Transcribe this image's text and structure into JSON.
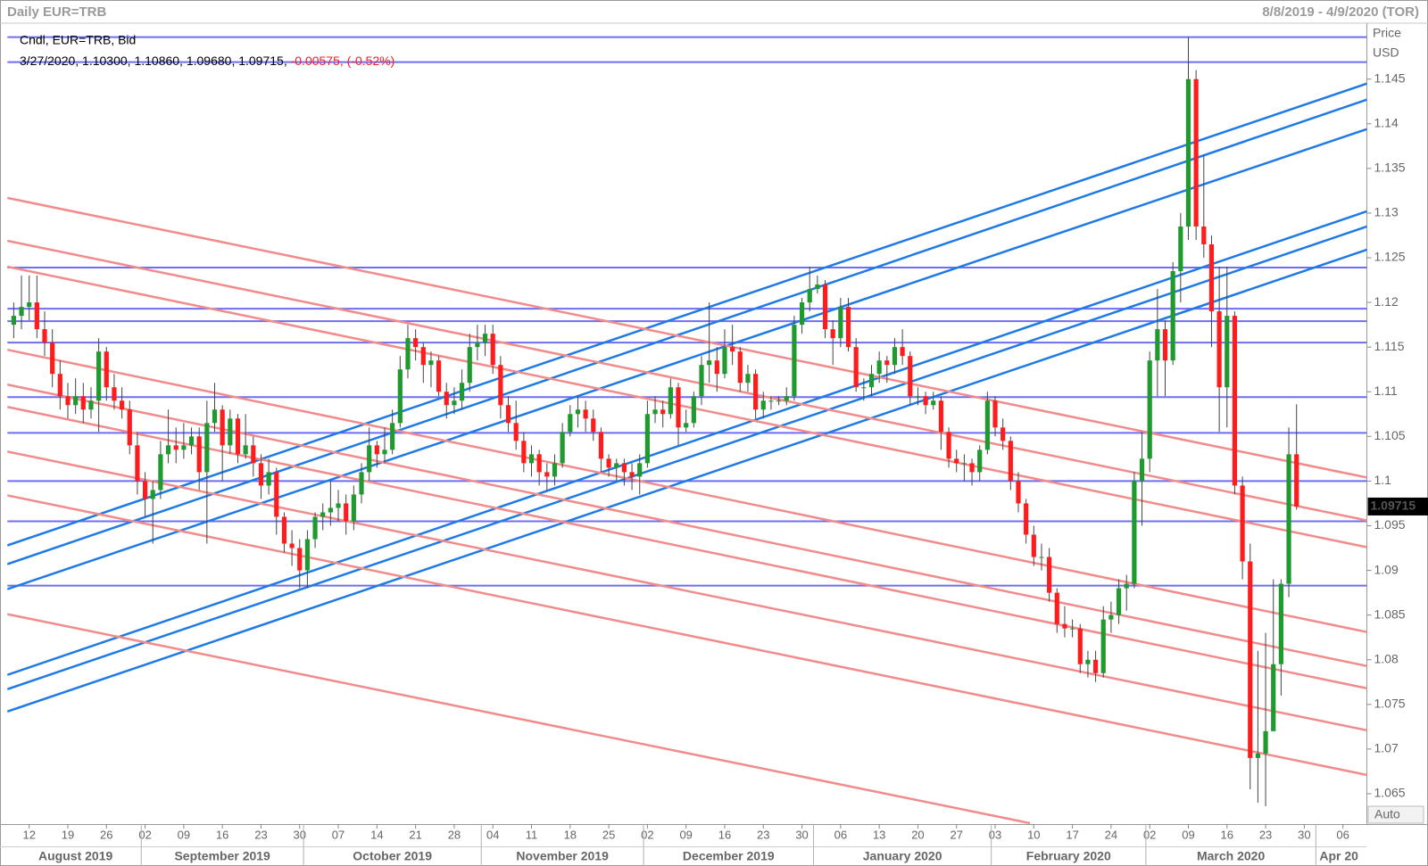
{
  "chart_data": {
    "type": "candlestick",
    "title": "Daily EUR=TRB",
    "date_range": "8/8/2019 - 4/9/2020 (TOR)",
    "y_axis_label": "Price",
    "y_axis_unit": "USD",
    "scale_mode": "Auto",
    "legend": {
      "series_label": "Cndl, EUR=TRB, Bid",
      "last_values": "3/27/2020, 1.10300, 1.10860, 1.09680, 1.09715,",
      "change": "-0.00575, (-0.52%)"
    },
    "up_color": "#1f9a2e",
    "down_color": "#ff1c1c",
    "wick_color": "#444444",
    "ylim": [
      1.0616,
      1.1508
    ],
    "yticks": [
      1.065,
      1.07,
      1.075,
      1.08,
      1.085,
      1.09,
      1.095,
      1.1,
      1.105,
      1.11,
      1.115,
      1.12,
      1.125,
      1.13,
      1.135,
      1.14,
      1.145
    ],
    "xlim": [
      -0.83,
      175.1
    ],
    "xticks": [
      {
        "value": 2,
        "label": "12"
      },
      {
        "value": 7,
        "label": "19"
      },
      {
        "value": 12,
        "label": "26"
      },
      {
        "value": 17,
        "label": "02"
      },
      {
        "value": 22,
        "label": "09"
      },
      {
        "value": 27,
        "label": "16"
      },
      {
        "value": 32,
        "label": "23"
      },
      {
        "value": 37,
        "label": "30"
      },
      {
        "value": 42,
        "label": "07"
      },
      {
        "value": 47,
        "label": "14"
      },
      {
        "value": 52,
        "label": "21"
      },
      {
        "value": 57,
        "label": "28"
      },
      {
        "value": 62,
        "label": "04"
      },
      {
        "value": 67,
        "label": "11"
      },
      {
        "value": 72,
        "label": "18"
      },
      {
        "value": 77,
        "label": "25"
      },
      {
        "value": 82,
        "label": "02"
      },
      {
        "value": 87,
        "label": "09"
      },
      {
        "value": 92,
        "label": "16"
      },
      {
        "value": 97,
        "label": "23"
      },
      {
        "value": 102,
        "label": "30"
      },
      {
        "value": 107,
        "label": "06"
      },
      {
        "value": 112,
        "label": "13"
      },
      {
        "value": 117,
        "label": "20"
      },
      {
        "value": 122,
        "label": "27"
      },
      {
        "value": 127,
        "label": "03"
      },
      {
        "value": 132,
        "label": "10"
      },
      {
        "value": 137,
        "label": "17"
      },
      {
        "value": 142,
        "label": "24"
      },
      {
        "value": 147,
        "label": "02"
      },
      {
        "value": 152,
        "label": "09"
      },
      {
        "value": 157,
        "label": "16"
      },
      {
        "value": 162,
        "label": "23"
      },
      {
        "value": 167,
        "label": "30"
      },
      {
        "value": 172,
        "label": "06"
      }
    ],
    "months": [
      {
        "value": 0,
        "label": "August 2019"
      },
      {
        "value": 17,
        "label": "September 2019"
      },
      {
        "value": 38,
        "label": "October 2019"
      },
      {
        "value": 61,
        "label": "November 2019"
      },
      {
        "value": 82,
        "label": "December 2019"
      },
      {
        "value": 104,
        "label": "January 2020"
      },
      {
        "value": 127,
        "label": "February 2020"
      },
      {
        "value": 147,
        "label": "March 2020"
      },
      {
        "value": 169,
        "label": "Apr 20"
      }
    ],
    "hlines": {
      "color": "#6e6ef2",
      "values": [
        1.1497,
        1.1469,
        1.1239,
        1.1193,
        1.1179,
        1.1155,
        1.1094,
        1.1054,
        1.1,
        1.0955,
        1.0883
      ]
    },
    "trend_lines": [
      {
        "color": "#1f7ae6",
        "lines": [
          [
            -0.83,
            1.0928,
            175.1,
            1.1445
          ],
          [
            -0.83,
            1.0907,
            175.1,
            1.1427
          ],
          [
            -0.83,
            1.0879,
            175.1,
            1.1394
          ],
          [
            -0.83,
            1.0783,
            175.1,
            1.1302
          ],
          [
            -0.83,
            1.0767,
            175.1,
            1.1285
          ],
          [
            -0.83,
            1.0742,
            175.1,
            1.1259
          ]
        ]
      },
      {
        "color": "#f28b8b",
        "lines": [
          [
            -0.83,
            1.1317,
            175.1,
            1.1004
          ],
          [
            -0.83,
            1.1269,
            175.1,
            1.0956
          ],
          [
            -0.83,
            1.124,
            175.1,
            1.0926
          ],
          [
            -0.83,
            1.1147,
            175.1,
            1.0831
          ],
          [
            -0.83,
            1.1108,
            175.1,
            1.0793
          ],
          [
            -0.83,
            1.1083,
            175.1,
            1.0768
          ],
          [
            -0.83,
            1.1033,
            175.1,
            1.0721
          ],
          [
            -0.83,
            1.0984,
            175.1,
            1.0671
          ],
          [
            -0.83,
            1.0851,
            131.5,
            1.0617
          ]
        ]
      }
    ],
    "candles": [
      [
        1.1175,
        1.12,
        1.116,
        1.1185
      ],
      [
        1.1185,
        1.123,
        1.117,
        1.1195
      ],
      [
        1.1195,
        1.123,
        1.118,
        1.12
      ],
      [
        1.12,
        1.123,
        1.116,
        1.117
      ],
      [
        1.117,
        1.119,
        1.114,
        1.1155
      ],
      [
        1.1155,
        1.117,
        1.1105,
        1.112
      ],
      [
        1.112,
        1.1135,
        1.108,
        1.1095
      ],
      [
        1.1095,
        1.111,
        1.107,
        1.1085
      ],
      [
        1.1085,
        1.1115,
        1.1075,
        1.1095
      ],
      [
        1.1095,
        1.111,
        1.1065,
        1.108
      ],
      [
        1.108,
        1.1105,
        1.107,
        1.109
      ],
      [
        1.109,
        1.116,
        1.1055,
        1.1145
      ],
      [
        1.1145,
        1.115,
        1.109,
        1.1105
      ],
      [
        1.1105,
        1.112,
        1.108,
        1.109
      ],
      [
        1.109,
        1.1105,
        1.107,
        1.108
      ],
      [
        1.108,
        1.109,
        1.103,
        1.104
      ],
      [
        1.104,
        1.1055,
        1.0985,
        1.1
      ],
      [
        1.1,
        1.101,
        1.096,
        1.098
      ],
      [
        1.098,
        1.1,
        1.093,
        1.099
      ],
      [
        1.099,
        1.1045,
        1.098,
        1.103
      ],
      [
        1.103,
        1.108,
        1.102,
        1.104
      ],
      [
        1.104,
        1.106,
        1.102,
        1.1035
      ],
      [
        1.1035,
        1.1065,
        1.1025,
        1.104
      ],
      [
        1.104,
        1.106,
        1.103,
        1.105
      ],
      [
        1.105,
        1.106,
        1.099,
        1.101
      ],
      [
        1.101,
        1.109,
        1.093,
        1.1065
      ],
      [
        1.1065,
        1.111,
        1.1055,
        1.108
      ],
      [
        1.108,
        1.1085,
        1.1,
        1.104
      ],
      [
        1.104,
        1.108,
        1.103,
        1.107
      ],
      [
        1.107,
        1.1075,
        1.102,
        1.103
      ],
      [
        1.103,
        1.1075,
        1.1025,
        1.104
      ],
      [
        1.104,
        1.105,
        1.1005,
        1.102
      ],
      [
        1.102,
        1.103,
        1.098,
        1.0995
      ],
      [
        1.0995,
        1.1025,
        1.0985,
        1.101
      ],
      [
        1.101,
        1.1015,
        1.094,
        1.096
      ],
      [
        1.096,
        1.0965,
        1.092,
        1.093
      ],
      [
        1.093,
        1.0945,
        1.0905,
        1.0925
      ],
      [
        1.0925,
        1.0935,
        1.088,
        1.09
      ],
      [
        1.09,
        1.0945,
        1.088,
        1.0935
      ],
      [
        1.0935,
        1.0965,
        1.0925,
        1.096
      ],
      [
        1.096,
        1.0975,
        1.0945,
        1.0965
      ],
      [
        1.0965,
        1.1,
        1.095,
        1.097
      ],
      [
        1.097,
        1.099,
        1.0955,
        1.0975
      ],
      [
        1.0975,
        1.0985,
        1.094,
        1.0955
      ],
      [
        1.0955,
        1.0995,
        1.0945,
        1.0985
      ],
      [
        1.0985,
        1.102,
        1.0975,
        1.101
      ],
      [
        1.101,
        1.106,
        1.1,
        1.104
      ],
      [
        1.104,
        1.1045,
        1.1015,
        1.103
      ],
      [
        1.103,
        1.106,
        1.102,
        1.1035
      ],
      [
        1.1035,
        1.108,
        1.103,
        1.1065
      ],
      [
        1.1065,
        1.114,
        1.106,
        1.1125
      ],
      [
        1.1125,
        1.1175,
        1.1115,
        1.116
      ],
      [
        1.116,
        1.117,
        1.1135,
        1.115
      ],
      [
        1.115,
        1.1155,
        1.111,
        1.113
      ],
      [
        1.113,
        1.1145,
        1.1105,
        1.1135
      ],
      [
        1.1135,
        1.114,
        1.1095,
        1.11
      ],
      [
        1.11,
        1.111,
        1.107,
        1.1085
      ],
      [
        1.1085,
        1.1105,
        1.1075,
        1.109
      ],
      [
        1.109,
        1.1125,
        1.108,
        1.111
      ],
      [
        1.111,
        1.1165,
        1.11,
        1.115
      ],
      [
        1.115,
        1.1175,
        1.1135,
        1.1155
      ],
      [
        1.1155,
        1.1175,
        1.114,
        1.1165
      ],
      [
        1.1165,
        1.1175,
        1.112,
        1.113
      ],
      [
        1.113,
        1.114,
        1.107,
        1.1085
      ],
      [
        1.1085,
        1.1095,
        1.1055,
        1.1065
      ],
      [
        1.1065,
        1.109,
        1.1035,
        1.1045
      ],
      [
        1.1045,
        1.1055,
        1.101,
        1.102
      ],
      [
        1.102,
        1.104,
        1.1005,
        1.103
      ],
      [
        1.103,
        1.1035,
        1.0995,
        1.101
      ],
      [
        1.101,
        1.102,
        1.099,
        1.1005
      ],
      [
        1.1005,
        1.103,
        1.0995,
        1.102
      ],
      [
        1.102,
        1.1065,
        1.1015,
        1.1055
      ],
      [
        1.1055,
        1.1085,
        1.105,
        1.1075
      ],
      [
        1.1075,
        1.1095,
        1.106,
        1.108
      ],
      [
        1.108,
        1.109,
        1.1055,
        1.107
      ],
      [
        1.107,
        1.108,
        1.1045,
        1.1055
      ],
      [
        1.1055,
        1.106,
        1.101,
        1.1025
      ],
      [
        1.1025,
        1.103,
        1.1005,
        1.1015
      ],
      [
        1.1015,
        1.1025,
        1.1,
        1.102
      ],
      [
        1.102,
        1.1025,
        1.0995,
        1.101
      ],
      [
        1.101,
        1.102,
        1.099,
        1.1005
      ],
      [
        1.1005,
        1.103,
        1.0985,
        1.102
      ],
      [
        1.102,
        1.109,
        1.1015,
        1.1075
      ],
      [
        1.1075,
        1.1095,
        1.1065,
        1.108
      ],
      [
        1.108,
        1.109,
        1.106,
        1.1075
      ],
      [
        1.1075,
        1.1115,
        1.107,
        1.1105
      ],
      [
        1.1105,
        1.111,
        1.104,
        1.106
      ],
      [
        1.106,
        1.108,
        1.1055,
        1.1065
      ],
      [
        1.1065,
        1.11,
        1.106,
        1.1095
      ],
      [
        1.1095,
        1.114,
        1.1085,
        1.113
      ],
      [
        1.113,
        1.12,
        1.111,
        1.1135
      ],
      [
        1.1135,
        1.115,
        1.11,
        1.112
      ],
      [
        1.112,
        1.117,
        1.1115,
        1.115
      ],
      [
        1.115,
        1.1175,
        1.113,
        1.1145
      ],
      [
        1.1145,
        1.115,
        1.11,
        1.111
      ],
      [
        1.111,
        1.113,
        1.11,
        1.112
      ],
      [
        1.112,
        1.1125,
        1.107,
        1.108
      ],
      [
        1.108,
        1.11,
        1.107,
        1.109
      ],
      [
        1.109,
        1.1095,
        1.108,
        1.109
      ],
      [
        1.109,
        1.1095,
        1.1085,
        1.109
      ],
      [
        1.109,
        1.1105,
        1.1085,
        1.1095
      ],
      [
        1.1095,
        1.1185,
        1.109,
        1.1175
      ],
      [
        1.1175,
        1.1205,
        1.1165,
        1.12
      ],
      [
        1.12,
        1.124,
        1.119,
        1.1215
      ],
      [
        1.1215,
        1.123,
        1.121,
        1.122
      ],
      [
        1.122,
        1.1225,
        1.116,
        1.117
      ],
      [
        1.117,
        1.118,
        1.113,
        1.116
      ],
      [
        1.116,
        1.1205,
        1.115,
        1.1195
      ],
      [
        1.1195,
        1.1205,
        1.1145,
        1.115
      ],
      [
        1.115,
        1.116,
        1.11,
        1.1105
      ],
      [
        1.1105,
        1.1115,
        1.109,
        1.1105
      ],
      [
        1.1105,
        1.113,
        1.1095,
        1.112
      ],
      [
        1.112,
        1.1145,
        1.111,
        1.1135
      ],
      [
        1.1135,
        1.114,
        1.111,
        1.113
      ],
      [
        1.113,
        1.116,
        1.112,
        1.115
      ],
      [
        1.115,
        1.117,
        1.113,
        1.114
      ],
      [
        1.114,
        1.1145,
        1.1085,
        1.1095
      ],
      [
        1.1095,
        1.1105,
        1.1085,
        1.1095
      ],
      [
        1.1095,
        1.11,
        1.1075,
        1.1085
      ],
      [
        1.1085,
        1.11,
        1.108,
        1.109
      ],
      [
        1.109,
        1.1095,
        1.1035,
        1.1055
      ],
      [
        1.1055,
        1.106,
        1.1015,
        1.1025
      ],
      [
        1.1025,
        1.1035,
        1.101,
        1.102
      ],
      [
        1.102,
        1.103,
        1.1,
        1.102
      ],
      [
        1.102,
        1.1025,
        1.0995,
        1.101
      ],
      [
        1.101,
        1.104,
        1.1,
        1.1035
      ],
      [
        1.1035,
        1.11,
        1.103,
        1.109
      ],
      [
        1.109,
        1.1095,
        1.105,
        1.106
      ],
      [
        1.106,
        1.107,
        1.1035,
        1.1045
      ],
      [
        1.1045,
        1.105,
        1.099,
        1.1
      ],
      [
        1.1,
        1.101,
        1.0965,
        1.0975
      ],
      [
        1.0975,
        1.098,
        1.093,
        1.094
      ],
      [
        1.094,
        1.095,
        1.0905,
        1.0915
      ],
      [
        1.0915,
        1.093,
        1.09,
        1.0915
      ],
      [
        1.0915,
        1.0925,
        1.0865,
        1.0875
      ],
      [
        1.0875,
        1.088,
        1.083,
        1.084
      ],
      [
        1.084,
        1.086,
        1.0825,
        1.0835
      ],
      [
        1.0835,
        1.0845,
        1.0825,
        1.0835
      ],
      [
        1.0835,
        1.084,
        1.0785,
        1.0795
      ],
      [
        1.0795,
        1.081,
        1.078,
        1.08
      ],
      [
        1.08,
        1.081,
        1.0775,
        1.0785
      ],
      [
        1.0785,
        1.086,
        1.078,
        1.0845
      ],
      [
        1.0845,
        1.0865,
        1.083,
        1.085
      ],
      [
        1.085,
        1.089,
        1.084,
        1.088
      ],
      [
        1.088,
        1.0895,
        1.0855,
        1.0885
      ],
      [
        1.0885,
        1.101,
        1.088,
        1.1
      ],
      [
        1.1,
        1.1055,
        1.095,
        1.1025
      ],
      [
        1.1025,
        1.1145,
        1.101,
        1.1135
      ],
      [
        1.1135,
        1.1215,
        1.1095,
        1.117
      ],
      [
        1.117,
        1.118,
        1.1095,
        1.1135
      ],
      [
        1.1135,
        1.1245,
        1.113,
        1.1235
      ],
      [
        1.1235,
        1.13,
        1.12,
        1.1285
      ],
      [
        1.1285,
        1.1497,
        1.127,
        1.145
      ],
      [
        1.145,
        1.146,
        1.127,
        1.1285
      ],
      [
        1.1285,
        1.1365,
        1.125,
        1.1265
      ],
      [
        1.1265,
        1.1275,
        1.115,
        1.119
      ],
      [
        1.119,
        1.124,
        1.1055,
        1.1105
      ],
      [
        1.1105,
        1.124,
        1.106,
        1.1185
      ],
      [
        1.1185,
        1.119,
        1.0985,
        1.0995
      ],
      [
        1.0995,
        1.1005,
        1.089,
        1.091
      ],
      [
        1.091,
        1.093,
        1.0655,
        1.069
      ],
      [
        1.069,
        1.081,
        1.064,
        1.0695
      ],
      [
        1.0695,
        1.083,
        1.0636,
        1.072
      ],
      [
        1.072,
        1.089,
        1.072,
        1.0795
      ],
      [
        1.0795,
        1.089,
        1.076,
        1.0885
      ],
      [
        1.0885,
        1.106,
        1.087,
        1.103
      ],
      [
        1.103,
        1.1086,
        1.0968,
        1.09715
      ]
    ]
  }
}
